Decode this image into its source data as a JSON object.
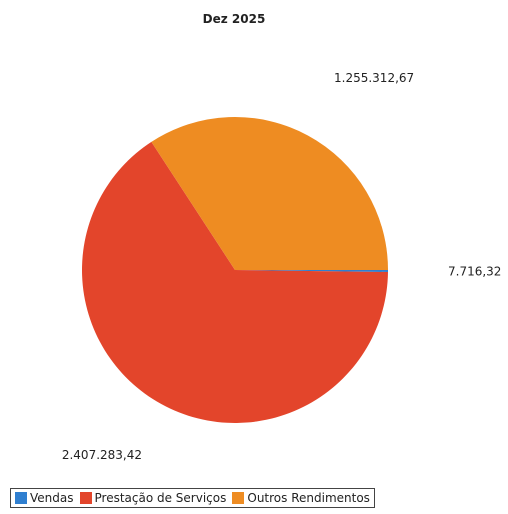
{
  "chart_data": {
    "type": "pie",
    "title": "Dez 2025",
    "categories": [
      "Vendas",
      "Prestação de Serviços",
      "Outros Rendimentos"
    ],
    "values": [
      7716.32,
      2407283.42,
      1255312.67
    ],
    "data_labels": [
      "7.716,32",
      "2.407.283,42",
      "1.255.312,67"
    ],
    "colors": [
      "#2f7fd0",
      "#e3452b",
      "#ee8c22"
    ],
    "legend": "bottom-left"
  }
}
